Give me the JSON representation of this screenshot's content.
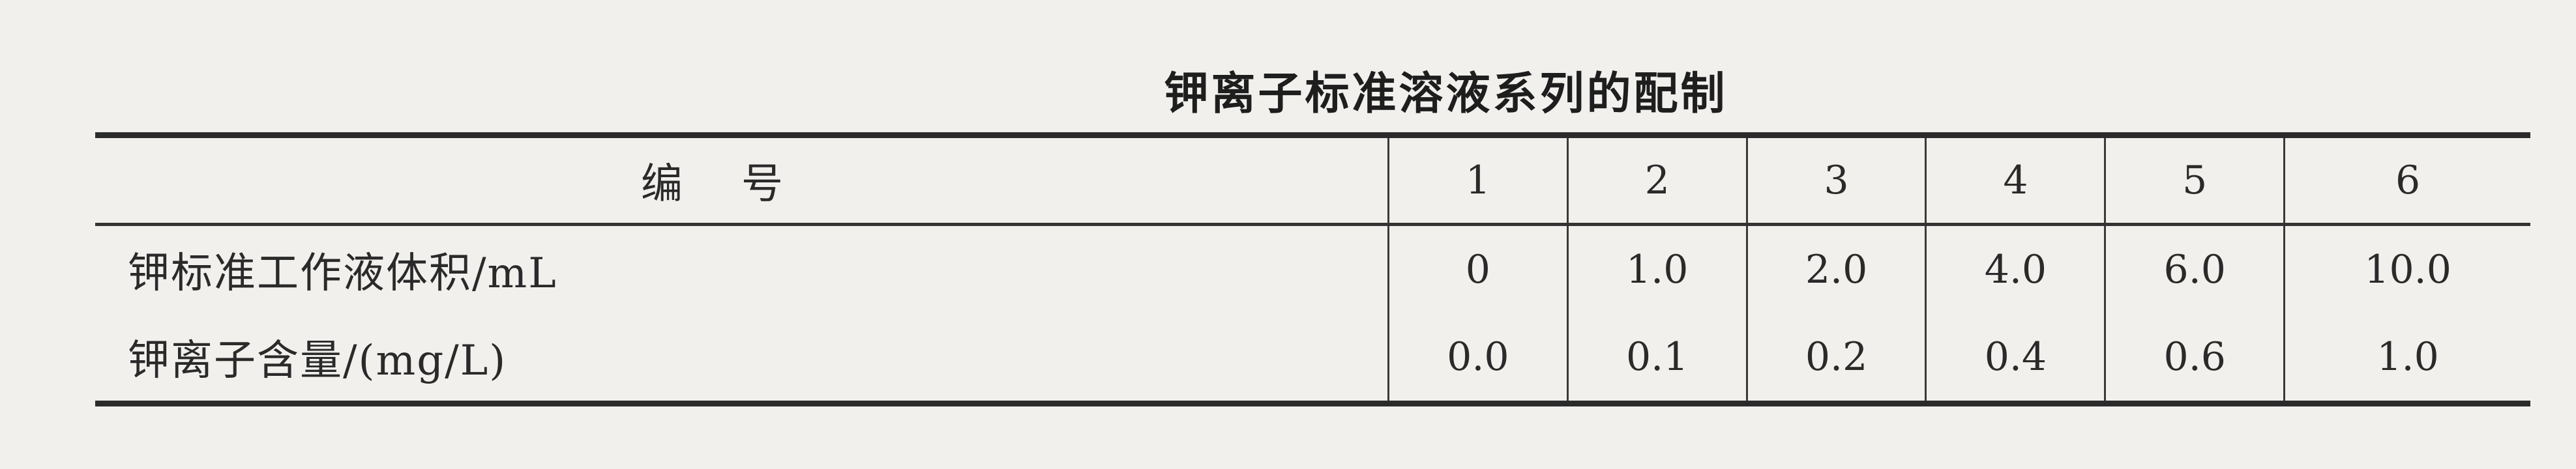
{
  "title": "钾离子标准溶液系列的配制",
  "table": {
    "header_label": "编号",
    "columns": [
      "1",
      "2",
      "3",
      "4",
      "5",
      "6"
    ],
    "rows": [
      {
        "label": "钾标准工作液体积/mL",
        "values": [
          "0",
          "1.0",
          "2.0",
          "4.0",
          "6.0",
          "10.0"
        ]
      },
      {
        "label": "钾离子含量/(mg/L)",
        "values": [
          "0.0",
          "0.1",
          "0.2",
          "0.4",
          "0.6",
          "1.0"
        ]
      }
    ]
  }
}
